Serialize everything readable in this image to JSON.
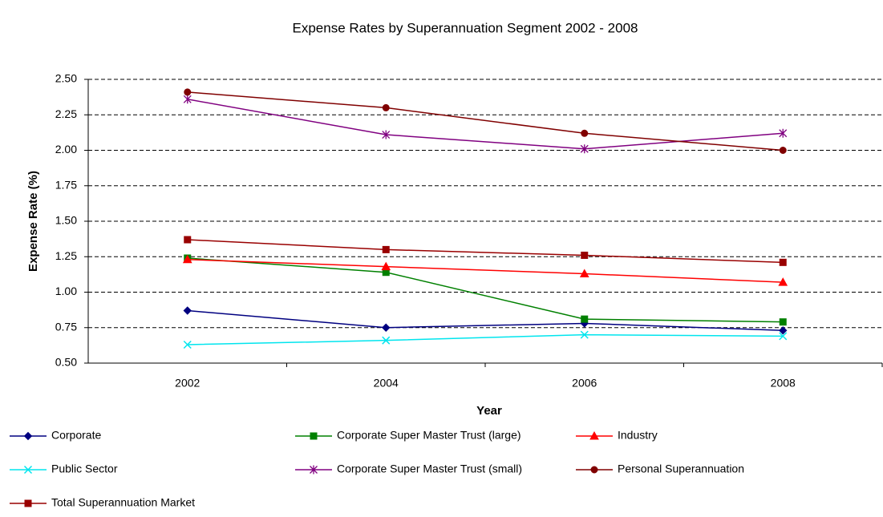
{
  "chart_data": {
    "type": "line",
    "title": "Expense Rates by Superannuation Segment 2002 - 2008",
    "x_label": "Year",
    "y_label": "Expense Rate (%)",
    "categories": [
      "2002",
      "2004",
      "2006",
      "2008"
    ],
    "ylim": [
      0.5,
      2.5
    ],
    "yticks": [
      {
        "value": 0.5,
        "label": "0.50"
      },
      {
        "value": 0.75,
        "label": "0.75"
      },
      {
        "value": 1.0,
        "label": "1.00"
      },
      {
        "value": 1.25,
        "label": "1.25"
      },
      {
        "value": 1.5,
        "label": "1.50"
      },
      {
        "value": 1.75,
        "label": "1.75"
      },
      {
        "value": 2.0,
        "label": "2.00"
      },
      {
        "value": 2.25,
        "label": "2.25"
      },
      {
        "value": 2.5,
        "label": "2.50"
      }
    ],
    "grid": true,
    "legend": "bottom",
    "series": [
      {
        "name": "Corporate",
        "color": "#000080",
        "marker": "diamond",
        "values": [
          0.87,
          0.75,
          0.78,
          0.73
        ]
      },
      {
        "name": "Corporate Super Master Trust (large)",
        "color": "#008000",
        "marker": "square",
        "values": [
          1.24,
          1.14,
          0.81,
          0.79
        ]
      },
      {
        "name": "Industry",
        "color": "#ff0000",
        "marker": "triangle",
        "values": [
          1.23,
          1.18,
          1.13,
          1.07
        ]
      },
      {
        "name": "Public Sector",
        "color": "#00e5ee",
        "marker": "x",
        "values": [
          0.63,
          0.66,
          0.7,
          0.69
        ]
      },
      {
        "name": "Corporate Super Master Trust (small)",
        "color": "#800080",
        "marker": "star",
        "values": [
          2.36,
          2.11,
          2.01,
          2.12
        ]
      },
      {
        "name": "Personal Superannuation",
        "color": "#800000",
        "marker": "circle",
        "values": [
          2.41,
          2.3,
          2.12,
          2.0
        ]
      },
      {
        "name": "Total Superannuation Market",
        "color": "#990000",
        "marker": "square",
        "values": [
          1.37,
          1.3,
          1.26,
          1.21
        ]
      }
    ]
  }
}
